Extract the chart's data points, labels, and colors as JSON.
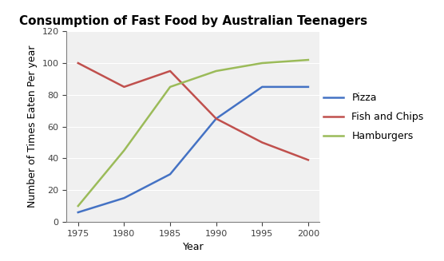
{
  "title": "Consumption of Fast Food by Australian Teenagers",
  "xlabel": "Year",
  "ylabel": "Number of Times Eaten Per year",
  "years": [
    1975,
    1980,
    1985,
    1990,
    1995,
    2000
  ],
  "pizza": [
    6,
    15,
    30,
    65,
    85,
    85
  ],
  "fish_and_chips": [
    100,
    85,
    95,
    65,
    50,
    39
  ],
  "hamburgers": [
    10,
    45,
    85,
    95,
    100,
    102
  ],
  "pizza_color": "#4472C4",
  "fish_color": "#C0504D",
  "hamburgers_color": "#9BBB59",
  "ylim": [
    0,
    120
  ],
  "yticks": [
    0,
    20,
    40,
    60,
    80,
    100,
    120
  ],
  "xticks": [
    1975,
    1980,
    1985,
    1990,
    1995,
    2000
  ],
  "linewidth": 1.8,
  "title_fontsize": 11,
  "axis_label_fontsize": 9,
  "tick_fontsize": 8,
  "legend_fontsize": 9,
  "background_color": "#FFFFFF",
  "plot_bg_color": "#F0F0F0",
  "grid_color": "#FFFFFF"
}
